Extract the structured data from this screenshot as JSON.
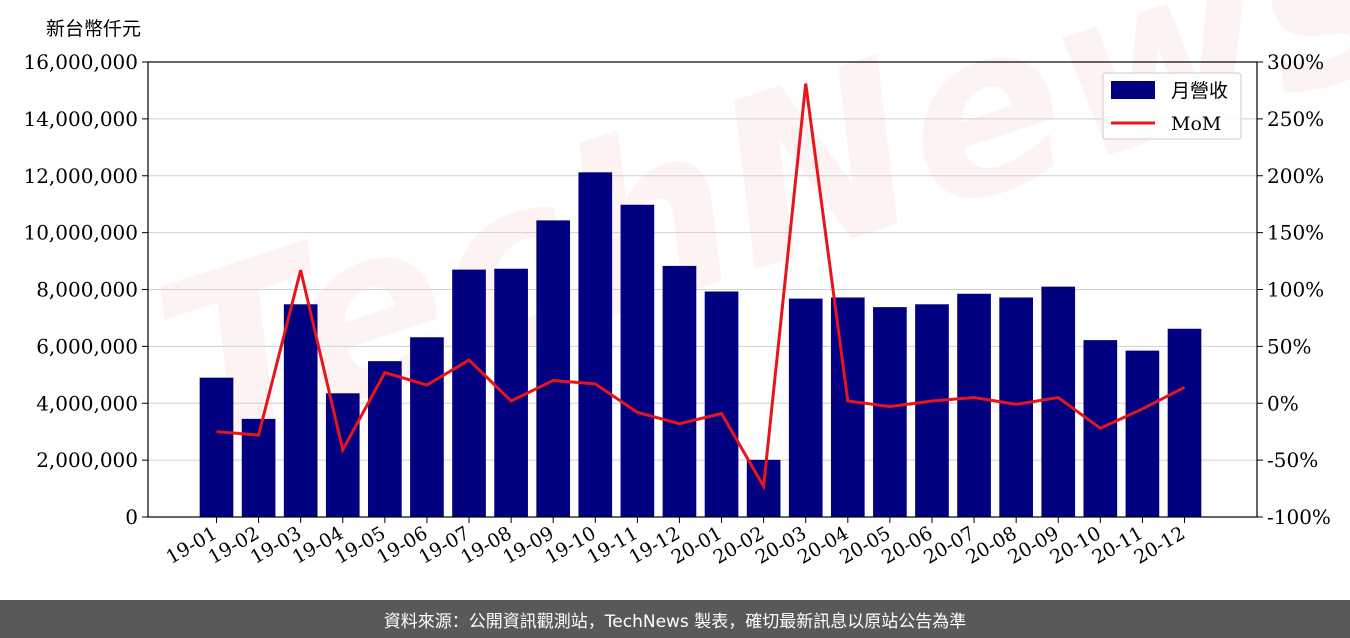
{
  "chart_data": {
    "type": "bar",
    "y_unit_label": "新台幣仟元",
    "categories": [
      "19-01",
      "19-02",
      "19-03",
      "19-04",
      "19-05",
      "19-06",
      "19-07",
      "19-08",
      "19-09",
      "19-10",
      "19-11",
      "19-12",
      "20-01",
      "20-02",
      "20-03",
      "20-04",
      "20-05",
      "20-06",
      "20-07",
      "20-08",
      "20-09",
      "20-10",
      "20-11",
      "20-12"
    ],
    "series": [
      {
        "name": "月營收",
        "type": "bar",
        "axis": "left",
        "color": "#000080",
        "values": [
          4900000,
          3450000,
          7480000,
          4350000,
          5480000,
          6320000,
          8700000,
          8730000,
          10430000,
          12120000,
          10980000,
          8830000,
          7930000,
          2010000,
          7680000,
          7720000,
          7380000,
          7480000,
          7850000,
          7720000,
          8100000,
          6220000,
          5850000,
          6620000
        ]
      },
      {
        "name": "MoM",
        "type": "line",
        "axis": "right",
        "color": "#e8141c",
        "values": [
          -25,
          -28,
          117,
          -41,
          27,
          16,
          38,
          2,
          20,
          17,
          -8,
          -18,
          -9,
          -73,
          281,
          2,
          -3,
          2,
          5,
          -1,
          5,
          -22,
          -5,
          14
        ]
      }
    ],
    "left_axis": {
      "ylim": [
        0,
        16000000
      ],
      "ticks": [
        "0",
        "2,000,000",
        "4,000,000",
        "6,000,000",
        "8,000,000",
        "10,000,000",
        "12,000,000",
        "14,000,000",
        "16,000,000"
      ]
    },
    "right_axis": {
      "ylim": [
        -100,
        300
      ],
      "ticks": [
        "-100%",
        "-50%",
        "0%",
        "50%",
        "100%",
        "150%",
        "200%",
        "250%",
        "300%"
      ]
    },
    "grid": true,
    "legend_position": "top-right"
  },
  "watermark_text": "TechNews",
  "footer_text": "資料來源：公開資訊觀測站，TechNews 製表，確切最新訊息以原站公告為準"
}
